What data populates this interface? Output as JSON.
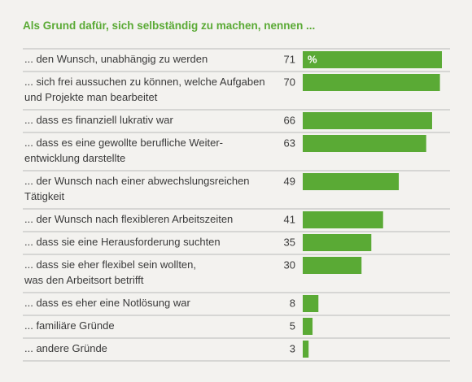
{
  "chart_data": {
    "type": "bar",
    "orientation": "horizontal",
    "title": "Als Grund dafür, sich selbständig zu machen, nennen ...",
    "categories": [
      "... den Wunsch, unabhängig zu werden",
      "... sich frei aussuchen zu können, welche Aufgaben\nund Projekte man bearbeitet",
      "... dass es finanziell lukrativ war",
      "... dass es eine gewollte berufliche Weiter-\nentwicklung darstellte",
      "... der Wunsch nach einer abwechslungsreichen\nTätigkeit",
      "... der Wunsch nach flexibleren Arbeitszeiten",
      "... dass sie eine Herausforderung suchten",
      "... dass sie eher flexibel sein wollten,\nwas den Arbeitsort betrifft",
      "... dass es eher eine Notlösung war",
      "... familiäre Gründe",
      "... andere Gründe"
    ],
    "values": [
      71,
      70,
      66,
      63,
      49,
      41,
      35,
      30,
      8,
      5,
      3
    ],
    "unit_label": "%",
    "color": "#5aaa35"
  }
}
